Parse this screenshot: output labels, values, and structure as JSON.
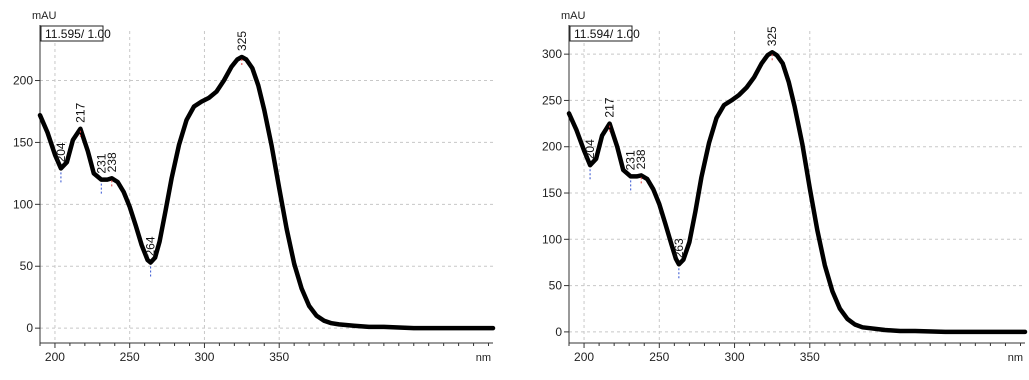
{
  "chart_data": [
    {
      "type": "line",
      "y_unit": "mAU",
      "x_unit": "nm",
      "header_box": "11.595/ 1.00",
      "xlim": [
        190,
        493
      ],
      "ylim": [
        -12,
        240
      ],
      "x_ticks": [
        200,
        250,
        300,
        350
      ],
      "y_ticks": [
        0,
        50,
        100,
        150,
        200
      ],
      "grid": true,
      "peaks": [
        {
          "label": "204",
          "x": 204,
          "y": 129,
          "kind": "min"
        },
        {
          "label": "217",
          "x": 217,
          "y": 161,
          "kind": "max"
        },
        {
          "label": "231",
          "x": 231,
          "y": 120,
          "kind": "min"
        },
        {
          "label": "238",
          "x": 238,
          "y": 121,
          "kind": "max"
        },
        {
          "label": "264",
          "x": 264,
          "y": 53,
          "kind": "min"
        },
        {
          "label": "325",
          "x": 325,
          "y": 219,
          "kind": "max"
        }
      ],
      "series": [
        {
          "x": [
            190,
            195,
            200,
            204,
            208,
            212,
            217,
            222,
            226,
            231,
            235,
            238,
            242,
            246,
            250,
            254,
            258,
            262,
            264,
            267,
            270,
            274,
            278,
            283,
            288,
            293,
            298,
            303,
            308,
            313,
            318,
            322,
            325,
            328,
            332,
            336,
            340,
            345,
            350,
            355,
            360,
            365,
            370,
            375,
            380,
            385,
            390,
            400,
            410,
            420,
            440,
            460,
            480,
            493
          ],
          "y": [
            172,
            158,
            140,
            129,
            134,
            152,
            161,
            143,
            125,
            120,
            120,
            121,
            118,
            110,
            98,
            83,
            67,
            55,
            53,
            57,
            70,
            95,
            121,
            148,
            168,
            179,
            183,
            186,
            191,
            200,
            211,
            217,
            219,
            217,
            210,
            196,
            176,
            147,
            113,
            80,
            52,
            32,
            18,
            10,
            6,
            4,
            3,
            2,
            1,
            1,
            0,
            0,
            0,
            0
          ]
        }
      ]
    },
    {
      "type": "line",
      "y_unit": "mAU",
      "x_unit": "nm",
      "header_box": "11.594/ 1.00",
      "xlim": [
        190,
        493
      ],
      "ylim": [
        -12,
        325
      ],
      "x_ticks": [
        200,
        250,
        300,
        350
      ],
      "y_ticks": [
        0,
        50,
        100,
        150,
        200,
        250,
        300
      ],
      "grid": true,
      "peaks": [
        {
          "label": "204",
          "x": 204,
          "y": 180,
          "kind": "min"
        },
        {
          "label": "217",
          "x": 217,
          "y": 225,
          "kind": "max"
        },
        {
          "label": "231",
          "x": 231,
          "y": 168,
          "kind": "min"
        },
        {
          "label": "238",
          "x": 238,
          "y": 169,
          "kind": "max"
        },
        {
          "label": "263",
          "x": 263,
          "y": 73,
          "kind": "min"
        },
        {
          "label": "325",
          "x": 325,
          "y": 302,
          "kind": "max"
        }
      ],
      "series": [
        {
          "x": [
            190,
            195,
            200,
            204,
            208,
            212,
            217,
            222,
            226,
            231,
            235,
            238,
            242,
            246,
            250,
            254,
            258,
            261,
            263,
            266,
            270,
            274,
            278,
            283,
            288,
            293,
            298,
            303,
            308,
            313,
            318,
            322,
            325,
            328,
            332,
            336,
            340,
            345,
            350,
            355,
            360,
            365,
            370,
            375,
            380,
            385,
            390,
            400,
            410,
            420,
            440,
            460,
            480,
            493
          ],
          "y": [
            236,
            218,
            196,
            180,
            187,
            212,
            225,
            200,
            175,
            168,
            168,
            169,
            165,
            154,
            138,
            117,
            95,
            79,
            73,
            78,
            97,
            130,
            167,
            204,
            231,
            245,
            250,
            256,
            264,
            275,
            290,
            299,
            302,
            299,
            290,
            270,
            243,
            203,
            155,
            110,
            72,
            44,
            25,
            14,
            8,
            5,
            4,
            2,
            1,
            1,
            0,
            0,
            0,
            0
          ]
        }
      ]
    }
  ]
}
